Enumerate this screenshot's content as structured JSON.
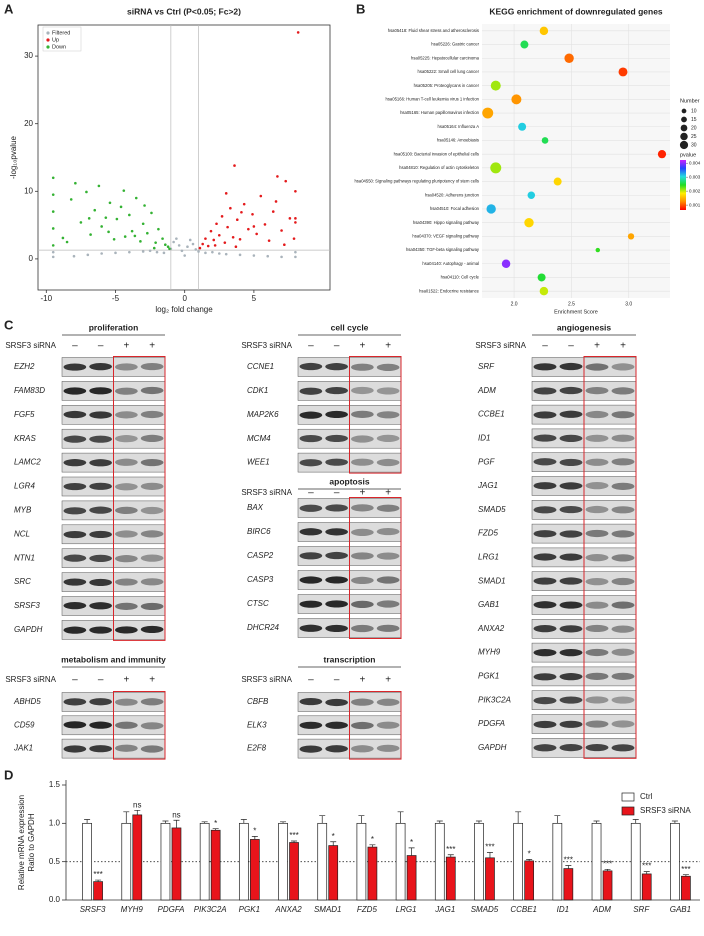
{
  "panel_labels": [
    "A",
    "B",
    "C",
    "D"
  ],
  "chart_data": [
    {
      "type": "scatter",
      "title": "siRNA vs Ctrl (P<0.05; Fc>2)",
      "x_label": "log₂ fold change",
      "y_label": "-log₁₀pvalue",
      "xlim": [
        -10.6,
        10.5
      ],
      "ylim": [
        -4.6,
        34.6
      ],
      "xticks": [
        -10,
        -5,
        0,
        5
      ],
      "yticks": [
        0,
        10,
        20,
        30
      ],
      "thresholds_x": [
        -1,
        1
      ],
      "threshold_y": 1.3,
      "legend": "top-left",
      "series": [
        {
          "name": "Filtered",
          "color": "#a9b3bb",
          "x": [
            -9.5,
            -9.5,
            -8,
            -7,
            -6,
            -5,
            -4,
            -3,
            -2.5,
            -2,
            -1.5,
            -1,
            -0.8,
            -0.6,
            -0.4,
            -0.2,
            0,
            0.2,
            0.4,
            0.6,
            0.8,
            1,
            1.5,
            2,
            2.5,
            3,
            4,
            5,
            6,
            7,
            8,
            8
          ],
          "y": [
            0.3,
            1,
            0.4,
            0.6,
            0.8,
            0.9,
            1.0,
            1.1,
            1.2,
            1.0,
            0.9,
            1.5,
            2.5,
            3,
            2,
            1.2,
            0.5,
            1.8,
            2.8,
            2.2,
            1.4,
            1.1,
            0.9,
            1.0,
            0.8,
            0.7,
            0.6,
            0.5,
            0.4,
            0.3,
            0.3,
            1
          ]
        },
        {
          "name": "Up",
          "color": "#e41a1c",
          "x": [
            1.1,
            1.3,
            1.5,
            1.7,
            1.9,
            2.1,
            2.3,
            2.5,
            2.7,
            2.9,
            3.1,
            3.3,
            3.5,
            3.6,
            3.8,
            4.0,
            4.3,
            4.6,
            4.9,
            5.2,
            5.5,
            5.8,
            6.1,
            6.4,
            6.7,
            7.0,
            7.3,
            7.6,
            7.9,
            8.0,
            8.0,
            8.0,
            2.2,
            3.0,
            4.1,
            5.0,
            6.6,
            7.2,
            8.2,
            3.7
          ],
          "y": [
            1.6,
            2.2,
            3.0,
            1.9,
            4.1,
            2.8,
            5.2,
            3.5,
            6.3,
            2.4,
            4.7,
            7.5,
            3.2,
            13.8,
            5.8,
            2.9,
            8.1,
            4.4,
            6.6,
            3.7,
            9.3,
            5.1,
            2.7,
            7.0,
            12.2,
            4.2,
            11.5,
            6.0,
            3,
            6,
            10,
            5.4,
            2.0,
            9.7,
            6.9,
            4.8,
            8.5,
            2.1,
            33.5,
            1.8
          ]
        },
        {
          "name": "Down",
          "color": "#34b233",
          "x": [
            -9.5,
            -9.5,
            -9.5,
            -9.5,
            -9.5,
            -8.8,
            -8.2,
            -7.9,
            -7.5,
            -7.1,
            -6.8,
            -6.5,
            -6.2,
            -6.0,
            -5.7,
            -5.4,
            -5.1,
            -4.9,
            -4.6,
            -4.3,
            -4.0,
            -3.8,
            -3.5,
            -3.2,
            -3.0,
            -2.7,
            -2.4,
            -2.1,
            -1.9,
            -1.6,
            -1.4,
            -1.2,
            -2.9,
            -4.4,
            -6.9,
            -8.5,
            -3.6,
            -5.5,
            -2.2,
            -1.1
          ],
          "y": [
            2,
            4.5,
            7,
            9.5,
            12,
            3.1,
            8.8,
            11.2,
            5.4,
            9.9,
            3.6,
            7.2,
            10.8,
            4.8,
            6.1,
            8.3,
            2.9,
            5.9,
            7.7,
            3.3,
            6.5,
            4.1,
            9.0,
            2.6,
            5.2,
            3.8,
            6.8,
            2.4,
            4.4,
            3.0,
            2.1,
            1.8,
            7.9,
            10.1,
            6.0,
            2.5,
            3.4,
            4.0,
            1.6,
            1.5
          ]
        }
      ]
    },
    {
      "type": "bubble",
      "title": "KEGG enrichment of downregulated genes",
      "x_label": "Enrichment Score",
      "categories": [
        "hsa05418: Fluid shear stress and atherosclerosis",
        "hsa05226: Gastric cancer",
        "hsa05225: Hepatocellular carcinoma",
        "hsa05222: Small cell lung cancer",
        "hsa05205: Proteoglycans in cancer",
        "hsa05166: Human T-cell leukemia virus 1 infection",
        "hsa05165: Human papillomavirus infection",
        "hsa05164: Influenza A",
        "hsa05146: Amoebiasis",
        "hsa05100: Bacterial invasion of epithelial cells",
        "hsa04810: Regulation of actin cytoskeleton",
        "hsa04550: Signaling pathways regulating pluripotency of stem cells",
        "hsa04520: Adherens junction",
        "hsa04510: Focal adhesion",
        "hsa04390: Hippo signaling pathway",
        "hsa04370: VEGF signaling pathway",
        "hsa04350: TGF-beta signaling pathway",
        "hsa04140: Autophagy - animal",
        "hsa04110: Cell cycle",
        "hsa01522: Endocrine resistance"
      ],
      "values": [
        2.26,
        2.09,
        2.48,
        2.95,
        1.84,
        2.02,
        1.77,
        2.07,
        2.27,
        3.29,
        1.84,
        2.38,
        2.15,
        1.8,
        2.13,
        3.02,
        2.73,
        1.93,
        2.24,
        2.26
      ],
      "sizes": [
        18,
        16,
        22,
        20,
        25,
        25,
        30,
        16,
        11,
        17,
        30,
        16,
        14,
        22,
        22,
        10,
        5,
        18,
        16,
        18
      ],
      "pvalues": [
        0.0016,
        0.0026,
        0.0011,
        0.0009,
        0.0021,
        0.0013,
        0.0014,
        0.0031,
        0.0026,
        0.0008,
        0.0021,
        0.0017,
        0.0031,
        0.0032,
        0.0017,
        0.0014,
        0.0024,
        0.004,
        0.0025,
        0.002
      ],
      "xlim": [
        1.72,
        3.36
      ],
      "xticks": [
        {
          "value": 2,
          "label": "2.0"
        },
        2.5,
        {
          "value": 3,
          "label": "3.0"
        }
      ],
      "grid": true,
      "size_legend": {
        "title": "Number",
        "values": [
          10,
          15,
          20,
          25,
          30
        ]
      },
      "color_legend": {
        "title": "pvalue",
        "clim": [
          0.00065,
          0.00423
        ],
        "ticks": [
          0.004,
          0.003,
          0.002,
          0.001
        ]
      },
      "colorscale": [
        "#ff0000",
        "#ff8c00",
        "#ffee00",
        "#22dd22",
        "#22dddd",
        "#2244ff",
        "#cc22ff"
      ]
    },
    {
      "type": "bar",
      "y_label": [
        "Relative mRNA expression",
        "Ratio to GAPDH"
      ],
      "categories": [
        "SRSF3",
        "MYH9",
        "PDGFA",
        "PIK3C2A",
        "PGK1",
        "ANXA2",
        "SMAD1",
        "FZD5",
        "LRG1",
        "JAG1",
        "SMAD5",
        "CCBE1",
        "ID1",
        "ADM",
        "SRF",
        "GAB1"
      ],
      "series": [
        {
          "name": "Ctrl",
          "color": "#ffffff",
          "values": [
            1,
            1,
            1,
            1,
            1,
            1,
            1,
            1,
            1,
            1,
            1,
            1,
            1,
            1,
            1,
            1
          ],
          "errors": [
            0.05,
            0.15,
            0.03,
            0.02,
            0.05,
            0.02,
            0.1,
            0.1,
            0.15,
            0.03,
            0.03,
            0.15,
            0.1,
            0.03,
            0.05,
            0.03
          ]
        },
        {
          "name": "SRSF3 siRNA",
          "color": "#e8141b",
          "values": [
            0.24,
            1.11,
            0.94,
            0.91,
            0.79,
            0.75,
            0.71,
            0.69,
            0.58,
            0.56,
            0.55,
            0.51,
            0.41,
            0.38,
            0.34,
            0.31
          ],
          "errors": [
            0.02,
            0.06,
            0.1,
            0.02,
            0.04,
            0.02,
            0.05,
            0.03,
            0.1,
            0.03,
            0.07,
            0.02,
            0.04,
            0.02,
            0.03,
            0.02
          ]
        }
      ],
      "annotations": [
        "***",
        "ns",
        "ns",
        "*",
        "*",
        "***",
        "*",
        "*",
        "*",
        "***",
        "***",
        "*",
        "***",
        "***",
        "***",
        "***"
      ],
      "ylim": [
        0,
        1.5
      ],
      "yticks": [
        {
          "value": 0,
          "label": "0.0"
        },
        0.5,
        {
          "value": 1,
          "label": "1.0"
        },
        1.5
      ],
      "reference_line": 0.5,
      "legend": "top-right"
    }
  ],
  "blots": {
    "treatment_label": "SRSF3 siRNA",
    "lanes": [
      "–",
      "–",
      "+",
      "+"
    ],
    "groups": [
      {
        "title": "proliferation",
        "genes": [
          "EZH2",
          "FAM83D",
          "FGF5",
          "KRAS",
          "LAMC2",
          "LGR4",
          "MYB",
          "NCL",
          "NTN1",
          "SRC",
          "SRSF3",
          "GAPDH"
        ]
      },
      {
        "title": "metabolism and immunity",
        "genes": [
          "ABHD5",
          "CD59",
          "JAK1"
        ]
      },
      {
        "title": "cell cycle",
        "genes": [
          "CCNE1",
          "CDK1",
          "MAP2K6",
          "MCM4",
          "WEE1"
        ]
      },
      {
        "title": "apoptosis",
        "genes": [
          "BAX",
          "BIRC6",
          "CASP2",
          "CASP3",
          "CTSC",
          "DHCR24"
        ]
      },
      {
        "title": "transcription",
        "genes": [
          "CBFB",
          "ELK3",
          "E2F8"
        ]
      },
      {
        "title": "angiogenesis",
        "genes": [
          "SRF",
          "ADM",
          "CCBE1",
          "ID1",
          "PGF",
          "JAG1",
          "SMAD5",
          "FZD5",
          "LRG1",
          "SMAD1",
          "GAB1",
          "ANXA2",
          "MYH9",
          "PGK1",
          "PIK3C2A",
          "PDGFA",
          "GAPDH"
        ]
      }
    ]
  }
}
